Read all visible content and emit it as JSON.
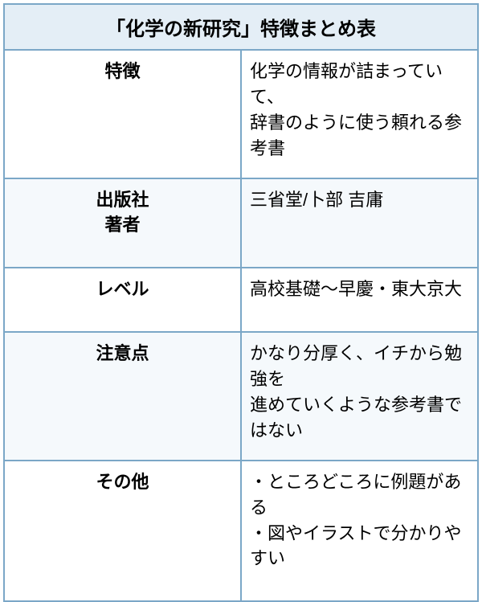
{
  "title": "「化学の新研究」特徴まとめ表",
  "colors": {
    "header_bg": "#e4eef6",
    "stripe_bg": "#f5f9fc",
    "border": "#7ba7c7",
    "text": "#000000"
  },
  "rows": [
    {
      "label": "特徴",
      "value": "化学の情報が詰まっていて、\n辞書のように使う頼れる参考書"
    },
    {
      "label": "出版社\n著者",
      "value": "三省堂/卜部 吉庸"
    },
    {
      "label": "レベル",
      "value": "高校基礎〜早慶・東大京大"
    },
    {
      "label": "注意点",
      "value": "かなり分厚く、イチから勉強を\n進めていくような参考書ではない"
    },
    {
      "label": "その他",
      "value": "・ところどころに例題がある\n・図やイラストで分かりやすい"
    }
  ]
}
